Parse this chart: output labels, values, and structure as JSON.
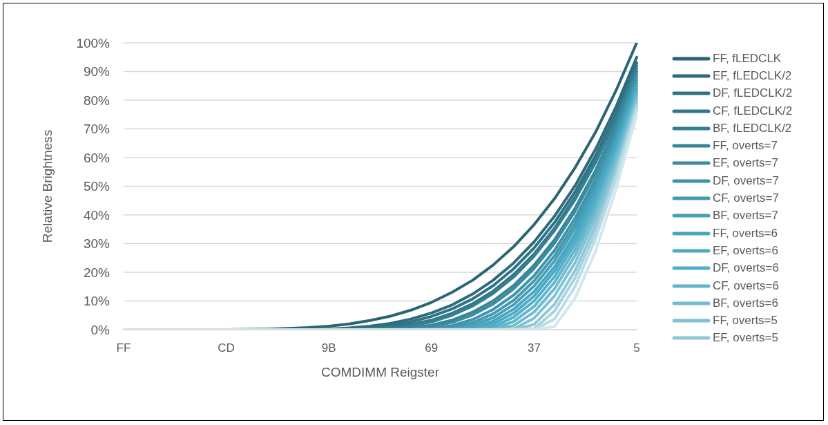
{
  "chart_data": {
    "type": "line",
    "xlabel": "COMDIMM Reigster",
    "ylabel": "Relative Brightness",
    "categories": [
      "FF",
      null,
      null,
      null,
      null,
      "CD",
      null,
      null,
      null,
      null,
      "9B",
      null,
      null,
      null,
      null,
      "69",
      null,
      null,
      null,
      null,
      "37",
      null,
      null,
      null,
      null,
      "5"
    ],
    "ylim": [
      0,
      100
    ],
    "yticks": [
      {
        "value": 0,
        "label": "0%"
      },
      {
        "value": 10,
        "label": "10%"
      },
      {
        "value": 20,
        "label": "20%"
      },
      {
        "value": 30,
        "label": "30%"
      },
      {
        "value": 40,
        "label": "40%"
      },
      {
        "value": 50,
        "label": "50%"
      },
      {
        "value": 60,
        "label": "60%"
      },
      {
        "value": 70,
        "label": "70%"
      },
      {
        "value": 80,
        "label": "80%"
      },
      {
        "value": 90,
        "label": "90%"
      },
      {
        "value": 100,
        "label": "100%"
      }
    ],
    "grid": "y",
    "legend": "right",
    "series": [
      {
        "name": "FF, fLEDCLK",
        "color": "#2a6574",
        "values": [
          null,
          null,
          null,
          null,
          null,
          0,
          0.1,
          0.2,
          0.4,
          0.7,
          1.2,
          2,
          3.2,
          4.7,
          6.8,
          9.5,
          13,
          17.2,
          22.5,
          28.9,
          36.6,
          45.7,
          56.5,
          68.9,
          83.5,
          100
        ]
      },
      {
        "name": "EF, fLEDCLK/2",
        "color": "#2c6b7b",
        "values": [
          null,
          null,
          null,
          null,
          null,
          null,
          null,
          null,
          0,
          0.1,
          0.2,
          0.6,
          1.2,
          2.2,
          3.7,
          5.8,
          8.6,
          12.4,
          17.2,
          23.2,
          30.6,
          39.6,
          50.2,
          63,
          77.8,
          95
        ]
      },
      {
        "name": "DF, fLEDCLK/2",
        "color": "#2f7283",
        "values": [
          null,
          null,
          null,
          null,
          null,
          null,
          null,
          null,
          null,
          0,
          0.1,
          0.3,
          0.7,
          1.5,
          2.7,
          4.6,
          7.2,
          10.7,
          15.3,
          21.2,
          28.5,
          37.4,
          48.1,
          60.7,
          75.7,
          93
        ]
      },
      {
        "name": "CF, fLEDCLK/2",
        "color": "#32788a",
        "values": [
          null,
          null,
          null,
          null,
          null,
          null,
          null,
          null,
          null,
          null,
          0,
          0.1,
          0.3,
          0.8,
          1.8,
          3.3,
          5.7,
          9,
          13.4,
          19.2,
          26.4,
          35.4,
          46.3,
          59.2,
          74.2,
          92
        ]
      },
      {
        "name": "BF, fLEDCLK/2",
        "color": "#357f92",
        "values": [
          null,
          null,
          null,
          null,
          null,
          null,
          null,
          null,
          null,
          null,
          null,
          0,
          0.1,
          0.5,
          1.3,
          2.7,
          5,
          8.2,
          12.6,
          18.3,
          25.6,
          34.6,
          45.4,
          58.3,
          73.4,
          91
        ]
      },
      {
        "name": "FF, overts=7",
        "color": "#388699",
        "values": [
          null,
          null,
          null,
          null,
          null,
          null,
          null,
          null,
          null,
          null,
          null,
          null,
          0,
          0.1,
          0.6,
          1.6,
          3.3,
          6.1,
          10,
          15.4,
          22.5,
          31.4,
          42.4,
          55.6,
          71.5,
          90
        ]
      },
      {
        "name": "EF, overts=7",
        "color": "#3b8ca1",
        "values": [
          null,
          null,
          null,
          null,
          null,
          null,
          null,
          null,
          null,
          null,
          null,
          null,
          null,
          0,
          0.2,
          1,
          2.5,
          5.1,
          8.9,
          14.2,
          21.3,
          30.2,
          41.3,
          54.6,
          70.5,
          89
        ]
      },
      {
        "name": "DF, overts=7",
        "color": "#3e93a9",
        "values": [
          null,
          null,
          null,
          null,
          null,
          null,
          null,
          null,
          null,
          null,
          null,
          null,
          null,
          null,
          0,
          0.4,
          1.4,
          3.5,
          7,
          12,
          18.8,
          27.7,
          38.9,
          52.5,
          68.8,
          88
        ]
      },
      {
        "name": "CF, overts=7",
        "color": "#4299b1",
        "values": [
          null,
          null,
          null,
          null,
          null,
          null,
          null,
          null,
          null,
          null,
          null,
          null,
          null,
          null,
          0,
          0.1,
          0.7,
          2.4,
          5.5,
          10.2,
          17,
          25.8,
          37,
          50.8,
          67.5,
          87
        ]
      },
      {
        "name": "BF, overts=7",
        "color": "#45a0b8",
        "values": [
          null,
          null,
          null,
          null,
          null,
          null,
          null,
          null,
          null,
          null,
          null,
          null,
          null,
          null,
          null,
          0,
          0.3,
          1.5,
          4.2,
          8.7,
          15.2,
          24,
          35.3,
          49.2,
          66,
          86
        ]
      },
      {
        "name": "FF, overts=6",
        "color": "#48a6bf",
        "values": [
          null,
          null,
          null,
          null,
          null,
          null,
          null,
          null,
          null,
          null,
          null,
          null,
          null,
          null,
          null,
          null,
          0,
          0.8,
          3,
          7.1,
          13.3,
          22,
          33.3,
          47.5,
          64.6,
          85
        ]
      },
      {
        "name": "EF, overts=6",
        "color": "#4baac4",
        "values": [
          null,
          null,
          null,
          null,
          null,
          null,
          null,
          null,
          null,
          null,
          null,
          null,
          null,
          null,
          null,
          null,
          0,
          0.3,
          2,
          5.7,
          11.7,
          20.4,
          31.7,
          46.1,
          63.4,
          84
        ]
      },
      {
        "name": "DF, overts=6",
        "color": "#52b0c9",
        "values": [
          null,
          null,
          null,
          null,
          null,
          null,
          null,
          null,
          null,
          null,
          null,
          null,
          null,
          null,
          null,
          null,
          null,
          0,
          1,
          4.3,
          10,
          18.5,
          30,
          44.4,
          62.2,
          83
        ]
      },
      {
        "name": "CF, overts=6",
        "color": "#62b5cc",
        "values": [
          null,
          null,
          null,
          null,
          null,
          null,
          null,
          null,
          null,
          null,
          null,
          null,
          null,
          null,
          null,
          null,
          null,
          0,
          0.3,
          2.8,
          8.1,
          16.5,
          28,
          42.7,
          60.7,
          82
        ]
      },
      {
        "name": "BF, overts=6",
        "color": "#71bbd0",
        "values": [
          null,
          null,
          null,
          null,
          null,
          null,
          null,
          null,
          null,
          null,
          null,
          null,
          null,
          null,
          null,
          null,
          null,
          null,
          0,
          1.4,
          6.1,
          14.3,
          25.9,
          40.8,
          59.2,
          81
        ]
      },
      {
        "name": "FF, overts=5",
        "color": "#80c2d4",
        "values": [
          null,
          null,
          null,
          null,
          null,
          null,
          null,
          null,
          null,
          null,
          null,
          null,
          null,
          null,
          null,
          null,
          null,
          null,
          0,
          0.2,
          4,
          11.8,
          23.4,
          38.7,
          57.6,
          80
        ]
      },
      {
        "name": "EF, overts=5",
        "color": "#90c8d8",
        "values": [
          null,
          null,
          null,
          null,
          null,
          null,
          null,
          null,
          null,
          null,
          null,
          null,
          null,
          null,
          null,
          null,
          null,
          null,
          null,
          0,
          1.8,
          8.9,
          20.6,
          36.3,
          55.9,
          79
        ]
      },
      {
        "color": "#a5d3e0",
        "values": [
          null,
          null,
          null,
          null,
          null,
          null,
          null,
          null,
          null,
          null,
          null,
          null,
          null,
          null,
          null,
          null,
          null,
          null,
          null,
          0,
          0.3,
          6.5,
          18.1,
          34.1,
          54.3,
          78
        ]
      },
      {
        "color": "#bcdde7",
        "values": [
          null,
          null,
          null,
          null,
          null,
          null,
          null,
          null,
          null,
          null,
          null,
          null,
          null,
          null,
          null,
          null,
          null,
          null,
          null,
          null,
          0,
          3.7,
          15.1,
          31.7,
          52.5,
          77
        ]
      },
      {
        "color": "#d3e7ee",
        "values": [
          0,
          0,
          0,
          0,
          0,
          0,
          0,
          0,
          0,
          0,
          0,
          0,
          0,
          0,
          0,
          0,
          0,
          0,
          0,
          0,
          0,
          1.1,
          11,
          27.5,
          49.1,
          75
        ]
      }
    ]
  }
}
